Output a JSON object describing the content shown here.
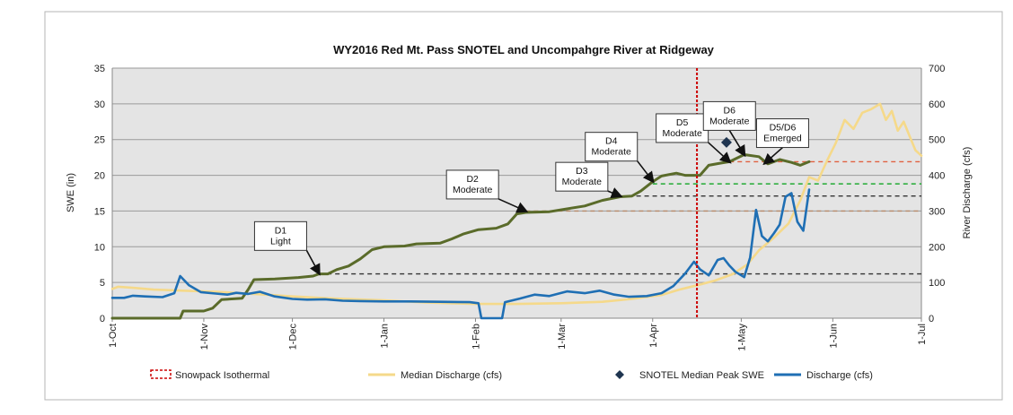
{
  "chart_data": {
    "type": "line",
    "title": "WY2016 Red Mt. Pass SNOTEL and Uncompahgre River at Ridgeway",
    "ylabel_left": "SWE (in)",
    "ylabel_right": "River Discharge (cfs)",
    "ylim_left": [
      0,
      35
    ],
    "ylim_right": [
      0,
      700
    ],
    "yticks_left": [
      "0",
      "5",
      "10",
      "15",
      "20",
      "25",
      "30",
      "35"
    ],
    "yticks_right": [
      "0",
      "100",
      "200",
      "300",
      "400",
      "500",
      "600",
      "700"
    ],
    "xlim": [
      "2015-10-01",
      "2016-07-01"
    ],
    "xticks": [
      {
        "date": "2015-10-01",
        "label": "1-Oct"
      },
      {
        "date": "2015-11-01",
        "label": "1-Nov"
      },
      {
        "date": "2015-12-01",
        "label": "1-Dec"
      },
      {
        "date": "2016-01-01",
        "label": "1-Jan"
      },
      {
        "date": "2016-02-01",
        "label": "1-Feb"
      },
      {
        "date": "2016-03-01",
        "label": "1-Mar"
      },
      {
        "date": "2016-04-01",
        "label": "1-Apr"
      },
      {
        "date": "2016-05-01",
        "label": "1-May"
      },
      {
        "date": "2016-06-01",
        "label": "1-Jun"
      },
      {
        "date": "2016-07-01",
        "label": "1-Jul"
      }
    ],
    "grid": true,
    "legend_position": "bottom",
    "colors": {
      "swe": "#5a6b2a",
      "median_discharge": "#f5d98a",
      "discharge": "#1f6fb4",
      "isothermal": "#cc0000",
      "median_peak": "#1f3550",
      "plot_bg": "#e4e4e4",
      "grid": "#9a9a9a"
    },
    "series": [
      {
        "name": "SWE",
        "axis": "left",
        "points": [
          [
            "2015-10-01",
            0
          ],
          [
            "2015-10-24",
            0
          ],
          [
            "2015-10-25",
            1.0
          ],
          [
            "2015-11-01",
            1.0
          ],
          [
            "2015-11-04",
            1.4
          ],
          [
            "2015-11-07",
            2.6
          ],
          [
            "2015-11-14",
            2.8
          ],
          [
            "2015-11-16",
            4.0
          ],
          [
            "2015-11-18",
            5.4
          ],
          [
            "2015-11-25",
            5.5
          ],
          [
            "2015-12-03",
            5.7
          ],
          [
            "2015-12-08",
            5.9
          ],
          [
            "2015-12-10",
            6.2
          ],
          [
            "2015-12-13",
            6.2
          ],
          [
            "2015-12-16",
            6.8
          ],
          [
            "2015-12-20",
            7.3
          ],
          [
            "2015-12-24",
            8.3
          ],
          [
            "2015-12-28",
            9.6
          ],
          [
            "2016-01-01",
            10.0
          ],
          [
            "2016-01-08",
            10.1
          ],
          [
            "2016-01-12",
            10.4
          ],
          [
            "2016-01-20",
            10.5
          ],
          [
            "2016-01-24",
            11.1
          ],
          [
            "2016-01-28",
            11.8
          ],
          [
            "2016-02-02",
            12.4
          ],
          [
            "2016-02-08",
            12.6
          ],
          [
            "2016-02-12",
            13.2
          ],
          [
            "2016-02-15",
            14.6
          ],
          [
            "2016-02-18",
            14.8
          ],
          [
            "2016-02-26",
            14.9
          ],
          [
            "2016-03-03",
            15.3
          ],
          [
            "2016-03-09",
            15.7
          ],
          [
            "2016-03-15",
            16.5
          ],
          [
            "2016-03-21",
            17.0
          ],
          [
            "2016-03-25",
            17.1
          ],
          [
            "2016-03-28",
            17.8
          ],
          [
            "2016-04-01",
            19.1
          ],
          [
            "2016-04-04",
            19.9
          ],
          [
            "2016-04-09",
            20.3
          ],
          [
            "2016-04-12",
            20.0
          ],
          [
            "2016-04-17",
            20.0
          ],
          [
            "2016-04-20",
            21.4
          ],
          [
            "2016-04-24",
            21.7
          ],
          [
            "2016-04-27",
            21.9
          ],
          [
            "2016-05-02",
            22.9
          ],
          [
            "2016-05-07",
            22.6
          ],
          [
            "2016-05-10",
            21.6
          ],
          [
            "2016-05-14",
            22.2
          ],
          [
            "2016-05-18",
            21.8
          ],
          [
            "2016-05-21",
            21.4
          ],
          [
            "2016-05-24",
            21.9
          ]
        ]
      },
      {
        "name": "Discharge (cfs)",
        "axis": "right",
        "points": [
          [
            "2015-10-01",
            57
          ],
          [
            "2015-10-05",
            57
          ],
          [
            "2015-10-08",
            63
          ],
          [
            "2015-10-12",
            61
          ],
          [
            "2015-10-18",
            59
          ],
          [
            "2015-10-22",
            70
          ],
          [
            "2015-10-24",
            118
          ],
          [
            "2015-10-27",
            92
          ],
          [
            "2015-10-31",
            73
          ],
          [
            "2015-11-05",
            69
          ],
          [
            "2015-11-09",
            66
          ],
          [
            "2015-11-12",
            71
          ],
          [
            "2015-11-16",
            68
          ],
          [
            "2015-11-20",
            74
          ],
          [
            "2015-11-25",
            61
          ],
          [
            "2015-12-01",
            54
          ],
          [
            "2015-12-06",
            52
          ],
          [
            "2015-12-12",
            53
          ],
          [
            "2015-12-18",
            49
          ],
          [
            "2015-12-24",
            48
          ],
          [
            "2016-01-01",
            47
          ],
          [
            "2016-01-10",
            47
          ],
          [
            "2016-01-20",
            46
          ],
          [
            "2016-01-30",
            45
          ],
          [
            "2016-02-02",
            42
          ],
          [
            "2016-02-03",
            0
          ],
          [
            "2016-02-10",
            0
          ],
          [
            "2016-02-11",
            45
          ],
          [
            "2016-02-16",
            55
          ],
          [
            "2016-02-21",
            66
          ],
          [
            "2016-02-26",
            62
          ],
          [
            "2016-03-03",
            75
          ],
          [
            "2016-03-09",
            70
          ],
          [
            "2016-03-14",
            77
          ],
          [
            "2016-03-19",
            66
          ],
          [
            "2016-03-24",
            60
          ],
          [
            "2016-03-30",
            62
          ],
          [
            "2016-04-04",
            70
          ],
          [
            "2016-04-08",
            90
          ],
          [
            "2016-04-12",
            125
          ],
          [
            "2016-04-15",
            158
          ],
          [
            "2016-04-17",
            137
          ],
          [
            "2016-04-20",
            120
          ],
          [
            "2016-04-23",
            163
          ],
          [
            "2016-04-25",
            168
          ],
          [
            "2016-04-27",
            147
          ],
          [
            "2016-04-29",
            130
          ],
          [
            "2016-05-02",
            115
          ],
          [
            "2016-05-04",
            170
          ],
          [
            "2016-05-06",
            303
          ],
          [
            "2016-05-08",
            230
          ],
          [
            "2016-05-10",
            215
          ],
          [
            "2016-05-12",
            237
          ],
          [
            "2016-05-14",
            262
          ],
          [
            "2016-05-16",
            340
          ],
          [
            "2016-05-18",
            350
          ],
          [
            "2016-05-20",
            270
          ],
          [
            "2016-05-22",
            245
          ],
          [
            "2016-05-24",
            360
          ]
        ]
      },
      {
        "name": "Median Discharge (cfs)",
        "axis": "right",
        "points": [
          [
            "2015-10-01",
            82
          ],
          [
            "2015-10-03",
            88
          ],
          [
            "2015-10-08",
            85
          ],
          [
            "2015-10-15",
            80
          ],
          [
            "2015-10-25",
            77
          ],
          [
            "2015-11-05",
            74
          ],
          [
            "2015-11-20",
            67
          ],
          [
            "2015-12-01",
            61
          ],
          [
            "2015-12-15",
            55
          ],
          [
            "2016-01-01",
            50
          ],
          [
            "2016-01-15",
            44
          ],
          [
            "2016-02-01",
            40
          ],
          [
            "2016-02-15",
            40
          ],
          [
            "2016-03-01",
            42
          ],
          [
            "2016-03-15",
            46
          ],
          [
            "2016-03-25",
            54
          ],
          [
            "2016-04-04",
            65
          ],
          [
            "2016-04-10",
            80
          ],
          [
            "2016-04-16",
            92
          ],
          [
            "2016-04-22",
            105
          ],
          [
            "2016-04-28",
            123
          ],
          [
            "2016-05-03",
            150
          ],
          [
            "2016-05-07",
            190
          ],
          [
            "2016-05-12",
            225
          ],
          [
            "2016-05-17",
            265
          ],
          [
            "2016-05-21",
            330
          ],
          [
            "2016-05-24",
            395
          ],
          [
            "2016-05-27",
            385
          ],
          [
            "2016-05-30",
            440
          ],
          [
            "2016-06-02",
            490
          ],
          [
            "2016-06-05",
            555
          ],
          [
            "2016-06-08",
            530
          ],
          [
            "2016-06-11",
            575
          ],
          [
            "2016-06-14",
            585
          ],
          [
            "2016-06-17",
            600
          ],
          [
            "2016-06-19",
            555
          ],
          [
            "2016-06-21",
            580
          ],
          [
            "2016-06-23",
            525
          ],
          [
            "2016-06-25",
            550
          ],
          [
            "2016-06-27",
            510
          ],
          [
            "2016-06-29",
            470
          ],
          [
            "2016-07-01",
            455
          ]
        ]
      }
    ],
    "reference_lines": [
      {
        "value": 6.2,
        "from": "2015-12-10",
        "to": "2016-07-01",
        "color": "#333333"
      },
      {
        "value": 15.0,
        "from": "2016-02-18",
        "to": "2016-07-01",
        "color": "#b88a6a"
      },
      {
        "value": 17.1,
        "from": "2016-03-21",
        "to": "2016-07-01",
        "color": "#333333"
      },
      {
        "value": 18.8,
        "from": "2016-04-01",
        "to": "2016-07-01",
        "color": "#22aa33"
      },
      {
        "value": 21.9,
        "from": "2016-04-27",
        "to": "2016-07-01",
        "color": "#e06040"
      }
    ],
    "isothermal_date": "2016-04-16",
    "median_peak_swe": {
      "date": "2016-04-26",
      "value": 24.6
    },
    "annotations": [
      {
        "lines": [
          "D1",
          "Light"
        ],
        "anchor": [
          "2015-11-27",
          11.5
        ],
        "target": [
          "2015-12-10",
          6.3
        ]
      },
      {
        "lines": [
          "D2",
          "Moderate"
        ],
        "anchor": [
          "2016-01-31",
          18.7
        ],
        "target": [
          "2016-02-18",
          15.0
        ]
      },
      {
        "lines": [
          "D3",
          "Moderate"
        ],
        "anchor": [
          "2016-03-08",
          19.8
        ],
        "target": [
          "2016-03-21",
          17.1
        ]
      },
      {
        "lines": [
          "D4",
          "Moderate"
        ],
        "anchor": [
          "2016-03-18",
          24.0
        ],
        "target": [
          "2016-04-01",
          19.2
        ]
      },
      {
        "lines": [
          "D5",
          "Moderate"
        ],
        "anchor": [
          "2016-04-11",
          26.6
        ],
        "target": [
          "2016-04-27",
          21.9
        ]
      },
      {
        "lines": [
          "D6",
          "Moderate"
        ],
        "anchor": [
          "2016-04-27",
          28.3
        ],
        "target": [
          "2016-05-02",
          22.9
        ]
      },
      {
        "lines": [
          "D5/D6",
          "Emerged"
        ],
        "anchor": [
          "2016-05-15",
          25.9
        ],
        "target": [
          "2016-05-09",
          21.7
        ]
      }
    ],
    "legend": [
      {
        "label": "Snowpack Isothermal",
        "kind": "isothermal"
      },
      {
        "label": "Median Discharge (cfs)",
        "kind": "median_discharge"
      },
      {
        "label": "SNOTEL Median Peak SWE",
        "kind": "median_peak"
      },
      {
        "label": "Discharge (cfs)",
        "kind": "discharge"
      }
    ]
  }
}
